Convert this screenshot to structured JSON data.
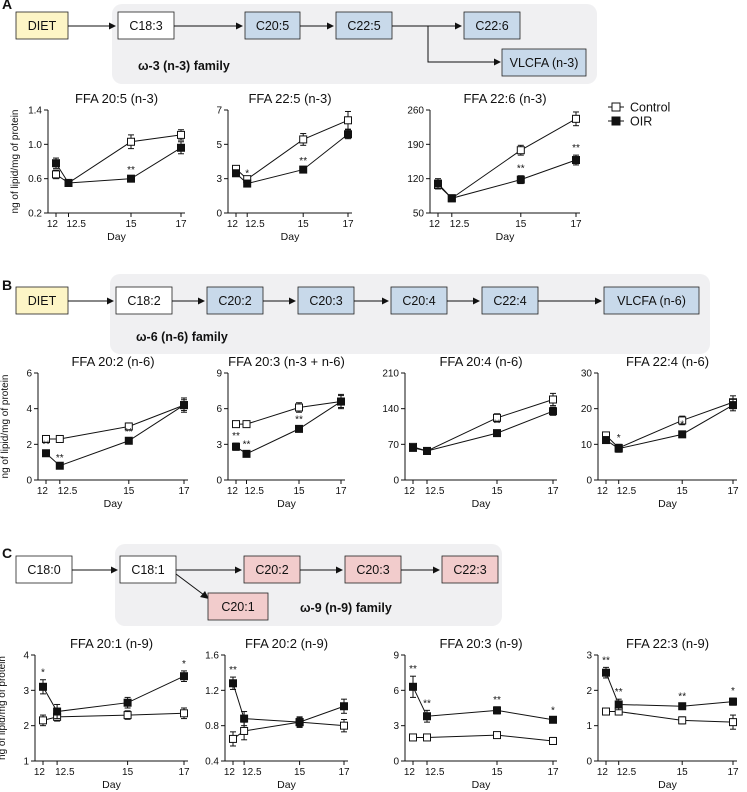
{
  "panels": [
    {
      "letter": "A",
      "pathway": {
        "family_label": "ω-3 (n-3) family",
        "diet": "DIET",
        "start": "C18:3",
        "chain": [
          "C20:5",
          "C22:5",
          "C22:6"
        ],
        "branch": "VLCFA (n-3)",
        "color": "#c8d9ea"
      },
      "ylabel": "ng of lipid/mg of protein",
      "show_legend": true
    },
    {
      "letter": "B",
      "pathway": {
        "family_label": "ω-6 (n-6) family",
        "diet": "DIET",
        "start": "C18:2",
        "chain": [
          "C20:2",
          "C20:3",
          "C20:4",
          "C22:4",
          "VLCFA (n-6)"
        ],
        "color": "#c8d9ea"
      },
      "ylabel": "ng of lipid/mg of protein"
    },
    {
      "letter": "C",
      "pathway": {
        "family_label": "ω-9 (n-9) family",
        "pre": "C18:0",
        "start": "C18:1",
        "chain": [
          "C20:2",
          "C20:3",
          "C22:3"
        ],
        "branch": "C20:1",
        "color": "#f2cccc"
      },
      "ylabel": "ng of lipid/mg of protein"
    }
  ],
  "legend": {
    "control": "Control",
    "oir": "OIR"
  },
  "chart_data": [
    {
      "type": "line",
      "title": "FFA 20:5 (n-3)",
      "xlabel": "Day",
      "ylabel": "ng of lipid/mg of protein",
      "x": [
        12,
        12.5,
        15,
        17
      ],
      "x_ticks": [
        "12",
        "12.5",
        "15",
        "17"
      ],
      "ylim": [
        0.2,
        1.4
      ],
      "yticks": [
        "0.2",
        "0.6",
        "1.0",
        "1.4"
      ],
      "series": [
        {
          "name": "Control",
          "values": [
            0.65,
            0.55,
            1.03,
            1.11
          ],
          "err": [
            0.05,
            0.03,
            0.08,
            0.06
          ]
        },
        {
          "name": "OIR",
          "values": [
            0.78,
            0.55,
            0.6,
            0.96
          ],
          "err": [
            0.06,
            0.03,
            0.02,
            0.07
          ]
        }
      ],
      "sig": [
        {
          "x": 15,
          "y": 0.6,
          "text": "**"
        }
      ]
    },
    {
      "type": "line",
      "title": "FFA 22:5 (n-3)",
      "xlabel": "Day",
      "ylabel": "",
      "x": [
        12,
        12.5,
        15,
        17
      ],
      "x_ticks": [
        "12",
        "12.5",
        "15",
        "17"
      ],
      "ylim": [
        0,
        7
      ],
      "yticks": [
        "0",
        "3",
        "5",
        "7"
      ],
      "series": [
        {
          "name": "Control",
          "values": [
            3.0,
            2.3,
            5.0,
            6.3
          ],
          "err": [
            0.2,
            0.2,
            0.4,
            0.6
          ]
        },
        {
          "name": "OIR",
          "values": [
            2.7,
            2.0,
            2.95,
            5.35
          ],
          "err": [
            0.2,
            0.2,
            0.1,
            0.3
          ]
        }
      ],
      "sig": [
        {
          "x": 12.5,
          "y": 2.0,
          "text": "*"
        },
        {
          "x": 15,
          "y": 2.95,
          "text": "**"
        }
      ]
    },
    {
      "type": "line",
      "title": "FFA 22:6 (n-3)",
      "xlabel": "Day",
      "ylabel": "",
      "x": [
        12,
        12.5,
        15,
        17
      ],
      "x_ticks": [
        "12",
        "12.5",
        "15",
        "17"
      ],
      "ylim": [
        50,
        260
      ],
      "yticks": [
        "50",
        "120",
        "190",
        "260"
      ],
      "series": [
        {
          "name": "Control",
          "values": [
            107,
            80,
            178,
            242
          ],
          "err": [
            8,
            6,
            10,
            14
          ]
        },
        {
          "name": "OIR",
          "values": [
            110,
            80,
            118,
            158
          ],
          "err": [
            10,
            6,
            8,
            10
          ]
        }
      ],
      "sig": [
        {
          "x": 15,
          "y": 118,
          "text": "**"
        },
        {
          "x": 17,
          "y": 158,
          "text": "**"
        }
      ]
    },
    {
      "type": "line",
      "title": "FFA 20:2 (n-6)",
      "xlabel": "Day",
      "ylabel": "ng of lipid/mg of protein",
      "x": [
        12,
        12.5,
        15,
        17
      ],
      "x_ticks": [
        "12",
        "12.5",
        "15",
        "17"
      ],
      "ylim": [
        0,
        6
      ],
      "yticks": [
        "0",
        "2",
        "4",
        "6"
      ],
      "series": [
        {
          "name": "Control",
          "values": [
            2.3,
            2.3,
            3.0,
            4.2
          ],
          "err": [
            0.1,
            0.1,
            0.2,
            0.3
          ]
        },
        {
          "name": "OIR",
          "values": [
            1.5,
            0.8,
            2.2,
            4.2
          ],
          "err": [
            0.1,
            0.05,
            0.1,
            0.4
          ]
        }
      ],
      "sig": [
        {
          "x": 12,
          "y": 1.5,
          "text": "**"
        },
        {
          "x": 12.5,
          "y": 0.8,
          "text": "**"
        },
        {
          "x": 15,
          "y": 2.2,
          "text": "**"
        }
      ]
    },
    {
      "type": "line",
      "title": "FFA 20:3 (n-3 + n-6)",
      "xlabel": "Day",
      "ylabel": "",
      "x": [
        12,
        12.5,
        15,
        17
      ],
      "x_ticks": [
        "12",
        "12.5",
        "15",
        "17"
      ],
      "ylim": [
        0,
        9
      ],
      "yticks": [
        "0",
        "3",
        "6",
        "9"
      ],
      "series": [
        {
          "name": "Control",
          "values": [
            4.7,
            4.7,
            6.1,
            6.6
          ],
          "err": [
            0.2,
            0.2,
            0.4,
            0.5
          ]
        },
        {
          "name": "OIR",
          "values": [
            2.8,
            2.2,
            4.3,
            6.6
          ],
          "err": [
            0.3,
            0.2,
            0.2,
            0.6
          ]
        }
      ],
      "sig": [
        {
          "x": 12,
          "y": 2.8,
          "text": "**"
        },
        {
          "x": 12.5,
          "y": 2.2,
          "text": "**"
        },
        {
          "x": 15,
          "y": 4.3,
          "text": "**"
        }
      ]
    },
    {
      "type": "line",
      "title": "FFA 20:4 (n-6)",
      "xlabel": "Day",
      "ylabel": "",
      "x": [
        12,
        12.5,
        15,
        17
      ],
      "x_ticks": [
        "12",
        "12.5",
        "15",
        "17"
      ],
      "ylim": [
        0,
        210
      ],
      "yticks": [
        "0",
        "70",
        "140",
        "210"
      ],
      "series": [
        {
          "name": "Control",
          "values": [
            65,
            57,
            122,
            158
          ],
          "err": [
            6,
            6,
            8,
            12
          ]
        },
        {
          "name": "OIR",
          "values": [
            63,
            57,
            92,
            135
          ],
          "err": [
            6,
            6,
            5,
            8
          ]
        }
      ],
      "sig": [
        {
          "x": 15,
          "y": 92,
          "text": "**"
        }
      ]
    },
    {
      "type": "line",
      "title": "FFA 22:4 (n-6)",
      "xlabel": "Day",
      "ylabel": "",
      "x": [
        12,
        12.5,
        15,
        17
      ],
      "x_ticks": [
        "12",
        "12.5",
        "15",
        "17"
      ],
      "ylim": [
        0,
        30
      ],
      "yticks": [
        "0",
        "10",
        "20",
        "30"
      ],
      "series": [
        {
          "name": "Control",
          "values": [
            12.5,
            9.0,
            16.7,
            21.8
          ],
          "err": [
            0.6,
            1.0,
            1.2,
            1.8
          ]
        },
        {
          "name": "OIR",
          "values": [
            11.2,
            8.8,
            12.8,
            21.0
          ],
          "err": [
            0.6,
            1.0,
            0.8,
            1.6
          ]
        }
      ],
      "sig": [
        {
          "x": 12.5,
          "y": 8.8,
          "text": "*"
        },
        {
          "x": 15,
          "y": 12.8,
          "text": "*"
        }
      ]
    },
    {
      "type": "line",
      "title": "FFA 20:1 (n-9)",
      "xlabel": "Day",
      "ylabel": "ng of lipid/mg of protein",
      "x": [
        12,
        12.5,
        15,
        17
      ],
      "x_ticks": [
        "12",
        "12.5",
        "15",
        "17"
      ],
      "ylim": [
        1,
        4
      ],
      "yticks": [
        "1",
        "2",
        "3",
        "4"
      ],
      "series": [
        {
          "name": "Control",
          "values": [
            2.15,
            2.25,
            2.3,
            2.35
          ],
          "err": [
            0.15,
            0.12,
            0.12,
            0.15
          ]
        },
        {
          "name": "OIR",
          "values": [
            3.1,
            2.4,
            2.65,
            3.4
          ],
          "err": [
            0.2,
            0.2,
            0.15,
            0.15
          ]
        }
      ],
      "sig": [
        {
          "x": 12,
          "y": 3.1,
          "text": "*"
        },
        {
          "x": 17,
          "y": 3.4,
          "text": "*"
        }
      ]
    },
    {
      "type": "line",
      "title": "FFA 20:2 (n-9)",
      "xlabel": "Day",
      "ylabel": "",
      "x": [
        12,
        12.5,
        15,
        17
      ],
      "x_ticks": [
        "12",
        "12.5",
        "15",
        "17"
      ],
      "ylim": [
        0.4,
        1.6
      ],
      "yticks": [
        "0.4",
        "0.8",
        "1.2",
        "1.6"
      ],
      "series": [
        {
          "name": "Control",
          "values": [
            0.65,
            0.74,
            0.84,
            0.8
          ],
          "err": [
            0.08,
            0.1,
            0.06,
            0.07
          ]
        },
        {
          "name": "OIR",
          "values": [
            1.28,
            0.88,
            0.84,
            1.02
          ],
          "err": [
            0.07,
            0.08,
            0.05,
            0.08
          ]
        }
      ],
      "sig": [
        {
          "x": 12,
          "y": 1.28,
          "text": "**"
        }
      ]
    },
    {
      "type": "line",
      "title": "FFA 20:3 (n-9)",
      "xlabel": "Day",
      "ylabel": "",
      "x": [
        12,
        12.5,
        15,
        17
      ],
      "x_ticks": [
        "12",
        "12.5",
        "15",
        "17"
      ],
      "ylim": [
        0,
        9
      ],
      "yticks": [
        "0",
        "3",
        "6",
        "9"
      ],
      "series": [
        {
          "name": "Control",
          "values": [
            2.0,
            2.0,
            2.2,
            1.7
          ],
          "err": [
            0.1,
            0.1,
            0.15,
            0.3
          ]
        },
        {
          "name": "OIR",
          "values": [
            6.3,
            3.8,
            4.3,
            3.5
          ],
          "err": [
            0.9,
            0.5,
            0.3,
            0.2
          ]
        }
      ],
      "sig": [
        {
          "x": 12,
          "y": 6.3,
          "text": "**"
        },
        {
          "x": 12.5,
          "y": 3.8,
          "text": "**"
        },
        {
          "x": 15,
          "y": 4.3,
          "text": "**"
        },
        {
          "x": 17,
          "y": 3.5,
          "text": "*"
        }
      ]
    },
    {
      "type": "line",
      "title": "FFA 22:3 (n-9)",
      "xlabel": "Day",
      "ylabel": "",
      "x": [
        12,
        12.5,
        15,
        17
      ],
      "x_ticks": [
        "12",
        "12.5",
        "15",
        "17"
      ],
      "ylim": [
        0,
        3
      ],
      "yticks": [
        "0",
        "1",
        "2",
        "3"
      ],
      "series": [
        {
          "name": "Control",
          "values": [
            1.4,
            1.4,
            1.15,
            1.1
          ],
          "err": [
            0.05,
            0.05,
            0.1,
            0.2
          ]
        },
        {
          "name": "OIR",
          "values": [
            2.5,
            1.6,
            1.55,
            1.68
          ],
          "err": [
            0.15,
            0.15,
            0.08,
            0.1
          ]
        }
      ],
      "sig": [
        {
          "x": 12,
          "y": 2.5,
          "text": "**"
        },
        {
          "x": 12.5,
          "y": 1.6,
          "text": "**"
        },
        {
          "x": 15,
          "y": 1.55,
          "text": "**"
        },
        {
          "x": 17,
          "y": 1.68,
          "text": "*"
        }
      ]
    }
  ]
}
